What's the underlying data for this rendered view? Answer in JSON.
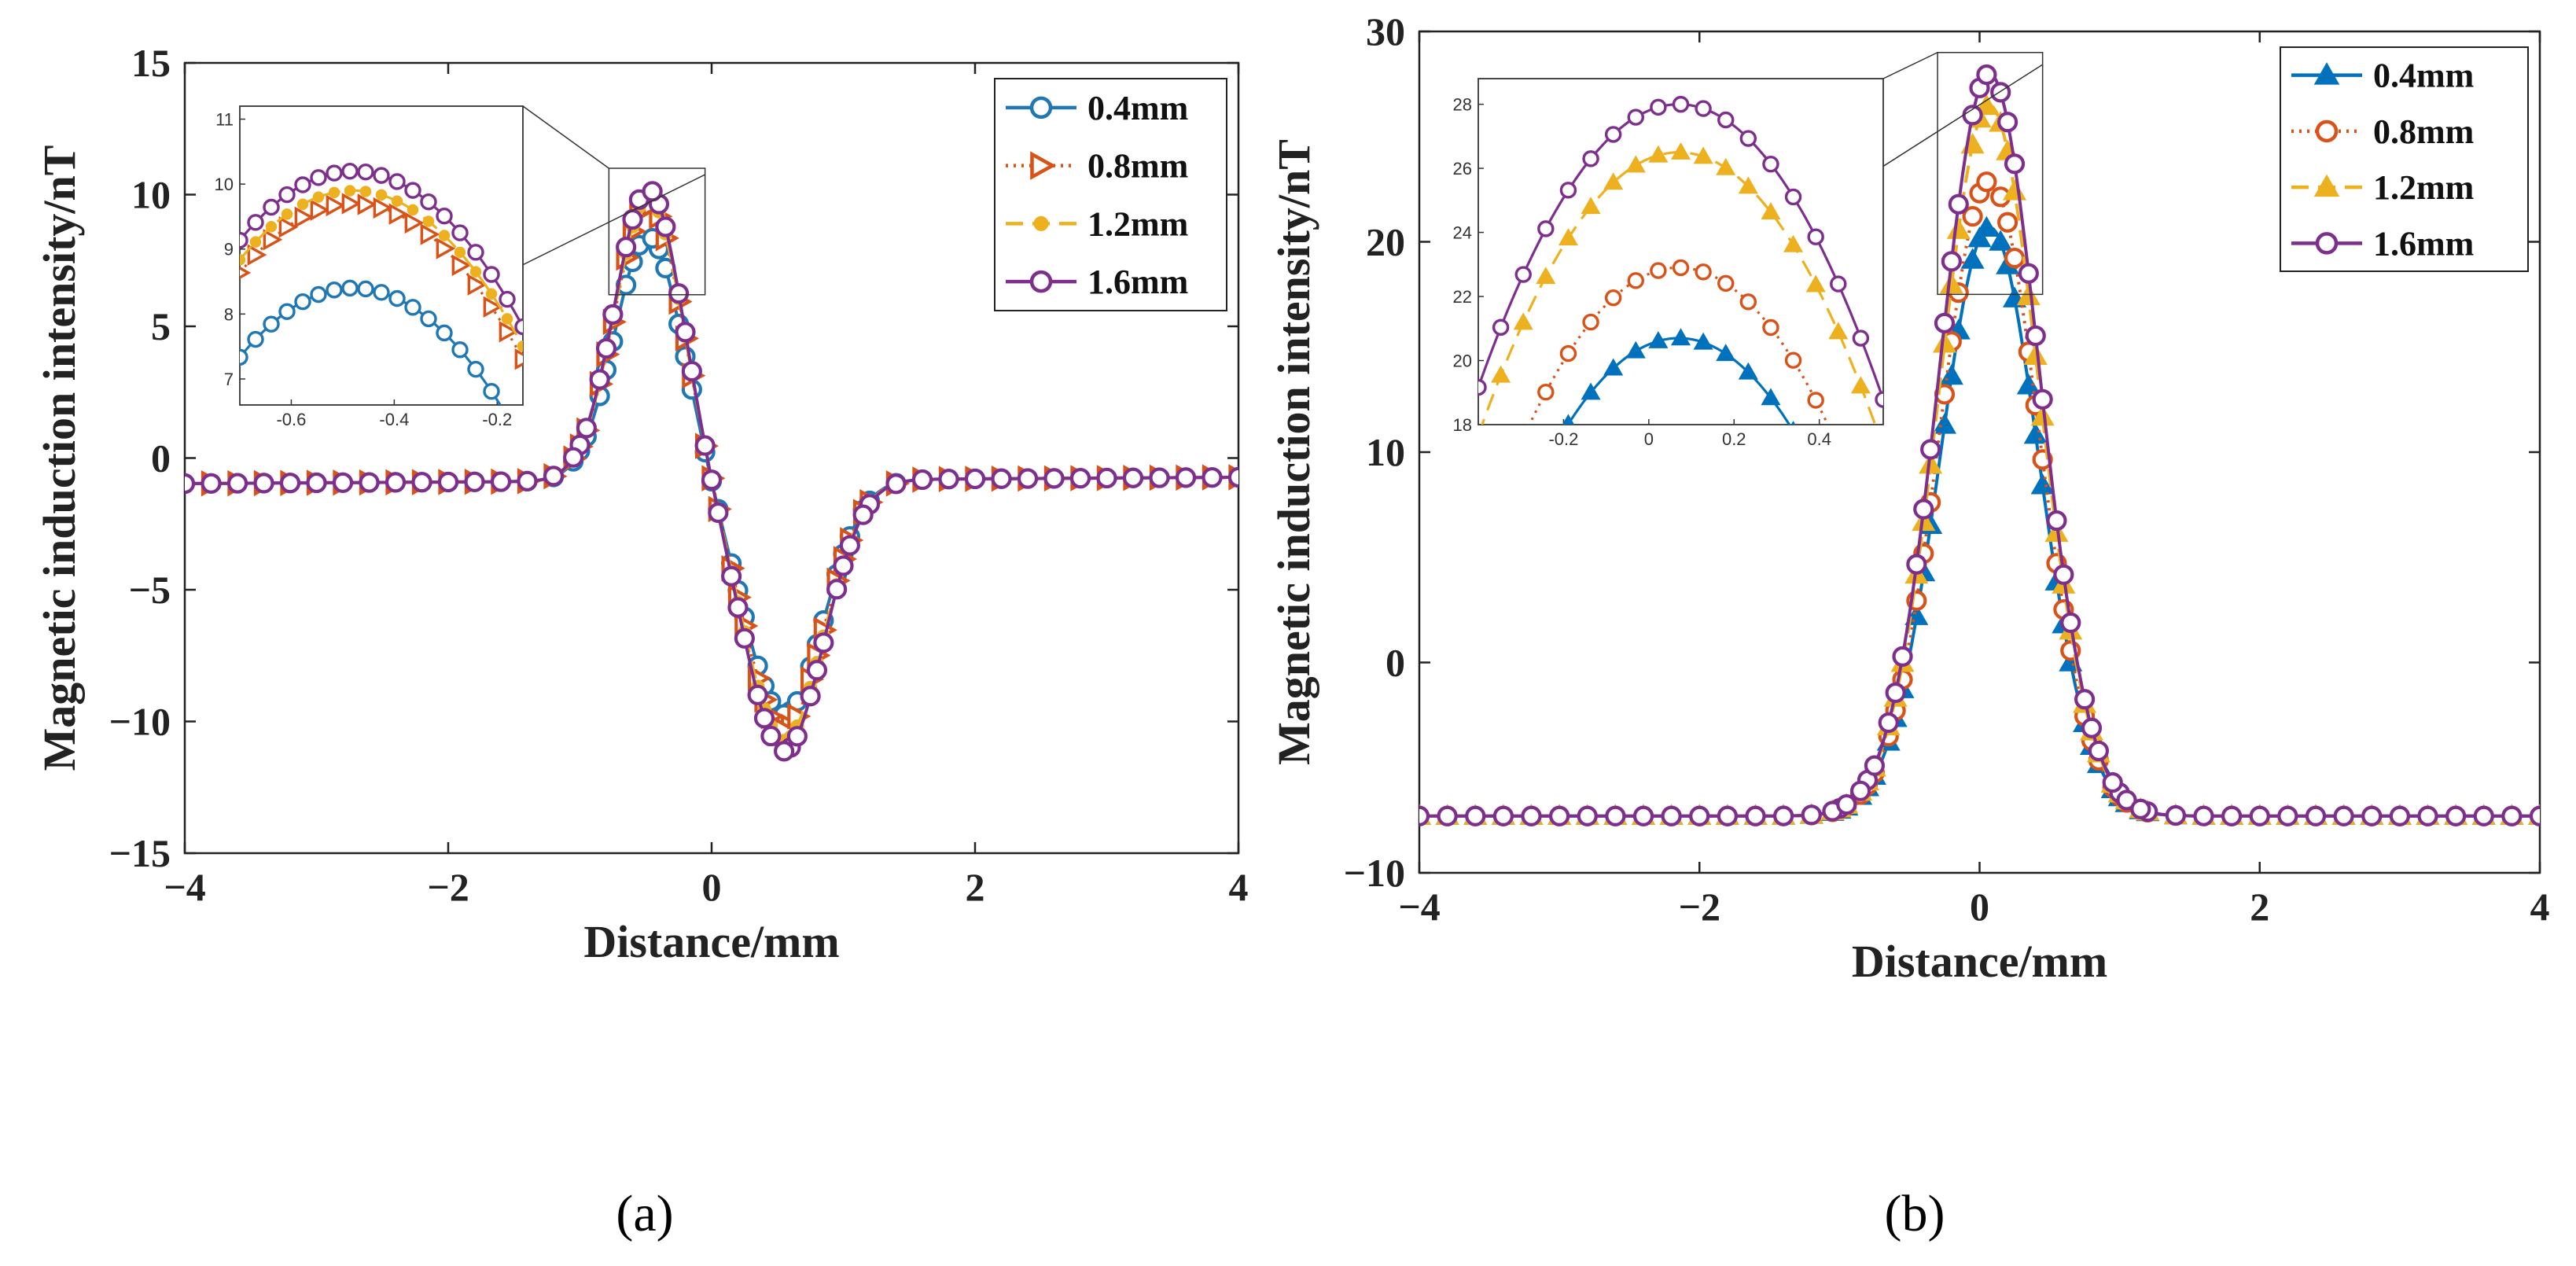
{
  "chart_data": [
    {
      "type": "line",
      "panel_label": "(a)",
      "xlabel": "Distance/mm",
      "ylabel": "Magnetic induction intensity/nT",
      "xlim": [
        -4,
        4
      ],
      "ylim": [
        -15,
        15
      ],
      "xticks": [
        -4,
        -2,
        0,
        2,
        4
      ],
      "yticks": [
        -15,
        -10,
        -5,
        0,
        5,
        10,
        15
      ],
      "xtick_labels": [
        "−4",
        "−2",
        "0",
        "2",
        "4"
      ],
      "ytick_labels": [
        "−15",
        "−10",
        "−5",
        "0",
        "5",
        "10",
        "15"
      ],
      "legend_position": "top-right",
      "signal_model": "dipole",
      "series": [
        {
          "name": "0.4mm",
          "color": "#1f77b4",
          "marker": "circle",
          "line": "solid",
          "peak": 8.4,
          "trough": -9.8
        },
        {
          "name": "0.8mm",
          "color": "#d95319",
          "marker": "triangle-right",
          "line": "dotted",
          "peak": 9.7,
          "trough": -10.4
        },
        {
          "name": "1.2mm",
          "color": "#edb120",
          "marker": "dot",
          "line": "dashed",
          "peak": 9.9,
          "trough": -10.8
        },
        {
          "name": "1.6mm",
          "color": "#7e2f8e",
          "marker": "circle",
          "line": "solid",
          "peak": 10.2,
          "trough": -11.2
        }
      ],
      "inset": {
        "xlim": [
          -0.7,
          -0.15
        ],
        "ylim": [
          6.6,
          11.2
        ],
        "xticks": [
          -0.6,
          -0.4,
          -0.2
        ],
        "yticks": [
          7,
          8,
          9,
          10,
          11
        ],
        "xtick_labels": [
          "-0.6",
          "-0.4",
          "-0.2"
        ],
        "ytick_labels": [
          "7",
          "8",
          "9",
          "10",
          "11"
        ],
        "zoom_xlim": [
          -0.78,
          -0.05
        ],
        "zoom_ylim": [
          6.2,
          11.0
        ],
        "peak_x": -0.48
      }
    },
    {
      "type": "line",
      "panel_label": "(b)",
      "xlabel": "Distance/mm",
      "ylabel": "Magnetic induction intensity/nT",
      "xlim": [
        -4,
        4
      ],
      "ylim": [
        -10,
        30
      ],
      "xticks": [
        -4,
        -2,
        0,
        2,
        4
      ],
      "yticks": [
        -10,
        0,
        10,
        20,
        30
      ],
      "xtick_labels": [
        "−4",
        "−2",
        "0",
        "2",
        "4"
      ],
      "ytick_labels": [
        "−10",
        "0",
        "10",
        "20",
        "30"
      ],
      "legend_position": "top-right",
      "signal_model": "gaussian",
      "baseline": -7.3,
      "series": [
        {
          "name": "0.4mm",
          "color": "#0072bd",
          "marker": "triangle-up",
          "line": "solid",
          "peak": 20.7
        },
        {
          "name": "0.8mm",
          "color": "#d95319",
          "marker": "circle",
          "line": "dotted",
          "peak": 22.9
        },
        {
          "name": "1.2mm",
          "color": "#edb120",
          "marker": "triangle-up",
          "line": "dashed",
          "peak": 26.5
        },
        {
          "name": "1.6mm",
          "color": "#7e2f8e",
          "marker": "circle",
          "line": "solid",
          "peak": 28.0
        }
      ],
      "inset": {
        "xlim": [
          -0.4,
          0.55
        ],
        "ylim": [
          18,
          28.8
        ],
        "xticks": [
          -0.2,
          0,
          0.2,
          0.4
        ],
        "yticks": [
          18,
          20,
          22,
          24,
          26,
          28
        ],
        "xtick_labels": [
          "-0.2",
          "0",
          "0.2",
          "0.4"
        ],
        "ytick_labels": [
          "18",
          "20",
          "22",
          "24",
          "26",
          "28"
        ],
        "zoom_xlim": [
          -0.3,
          0.45
        ],
        "zoom_ylim": [
          17.5,
          29.0
        ],
        "peak_x": 0.07
      }
    }
  ]
}
